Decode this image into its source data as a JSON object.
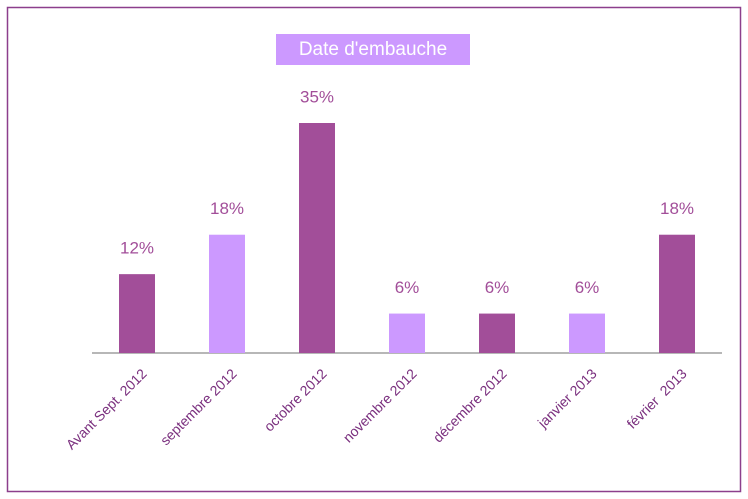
{
  "chart_data": {
    "type": "bar",
    "title": "Date d'embauche",
    "categories": [
      "Avant Sept. 2012",
      "septembre 2012",
      "octobre 2012",
      "novembre 2012",
      "décembre 2012",
      "janvier 2013",
      "février  2013"
    ],
    "values": [
      12,
      18,
      35,
      6,
      6,
      6,
      18
    ],
    "value_labels": [
      "12%",
      "18%",
      "35%",
      "6%",
      "6%",
      "6%",
      "18%"
    ],
    "colors": [
      "#a24e99",
      "#cc99ff",
      "#a24e99",
      "#cc99ff",
      "#a24e99",
      "#cc99ff",
      "#a24e99"
    ]
  }
}
